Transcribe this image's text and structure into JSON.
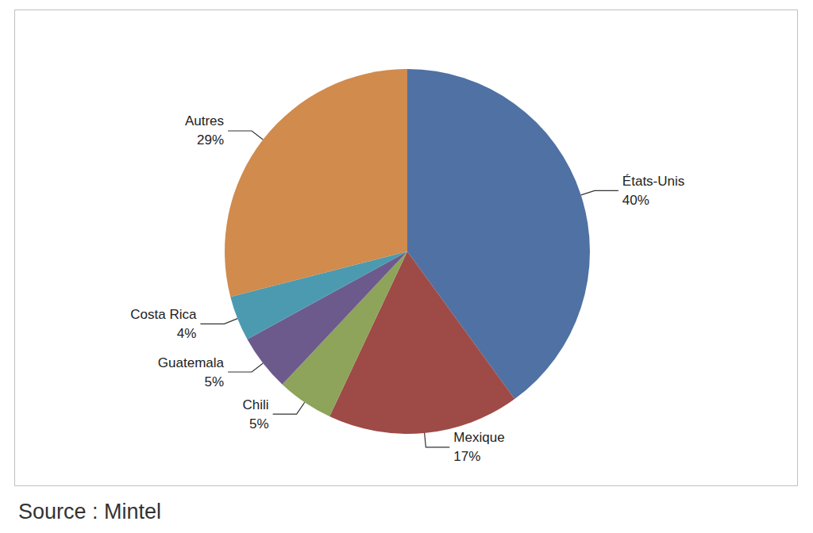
{
  "chart_data": {
    "type": "pie",
    "caption": "Source : Mintel",
    "categories": [
      "États-Unis",
      "Mexique",
      "Chili",
      "Guatemala",
      "Costa Rica",
      "Autres"
    ],
    "values": [
      40,
      17,
      5,
      5,
      4,
      29
    ],
    "value_labels": [
      "40%",
      "17%",
      "5%",
      "5%",
      "4%",
      "29%"
    ],
    "colors": [
      "#4f71a3",
      "#9e4a47",
      "#8da45a",
      "#6d5a8c",
      "#4b9ab0",
      "#d08b4d"
    ],
    "data_labels": true
  }
}
